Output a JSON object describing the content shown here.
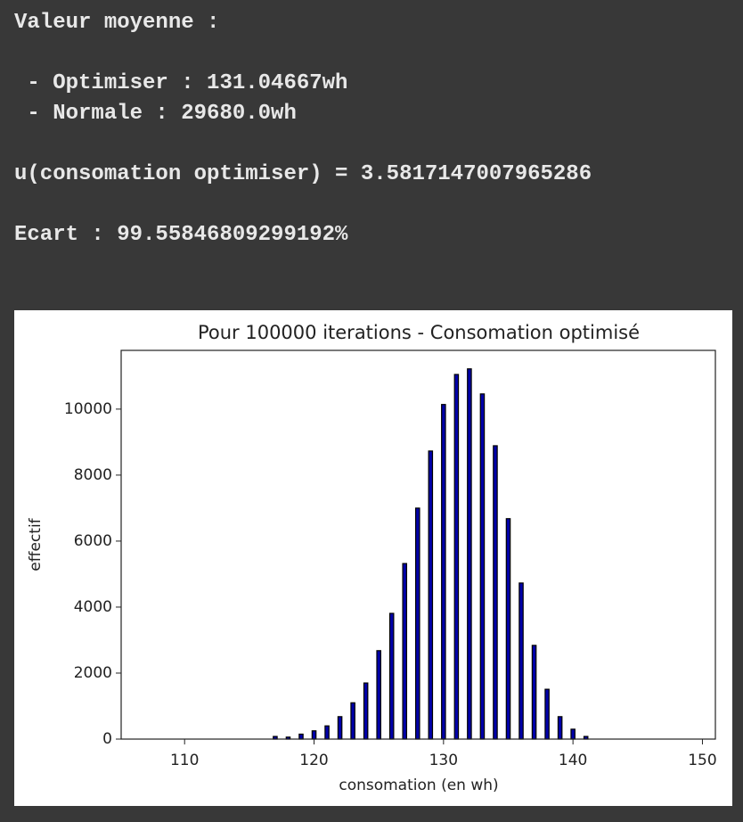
{
  "output": {
    "lines": [
      "Valeur moyenne :",
      " - Optimiser : 131.04667wh",
      " - Normale : 29680.0wh",
      "u(consomation optimiser) = 3.5817147007965286",
      "Ecart : 99.55846809299192%"
    ]
  },
  "chart_data": {
    "type": "bar",
    "title": "Pour 100000 iterations - Consomation optimisé",
    "x_label": "consomation (en wh)",
    "y_label": "effectif",
    "x": [
      117,
      118,
      119,
      120,
      121,
      122,
      123,
      124,
      125,
      126,
      127,
      128,
      129,
      130,
      131,
      132,
      133,
      134,
      135,
      136,
      137,
      138,
      139,
      140,
      141
    ],
    "values": [
      80,
      60,
      150,
      250,
      400,
      680,
      1100,
      1700,
      2680,
      3810,
      5320,
      7000,
      8730,
      10140,
      11050,
      11220,
      10460,
      8890,
      6680,
      4730,
      2840,
      1510,
      680,
      300,
      80
    ],
    "color": "#0000aa",
    "edgecolor": "#000000",
    "xlim": [
      105.1,
      151
    ],
    "xticks": [
      110,
      120,
      130,
      140,
      150
    ],
    "ylim": [
      0,
      11780
    ],
    "yticks": [
      0,
      2000,
      4000,
      6000,
      8000,
      10000
    ]
  }
}
